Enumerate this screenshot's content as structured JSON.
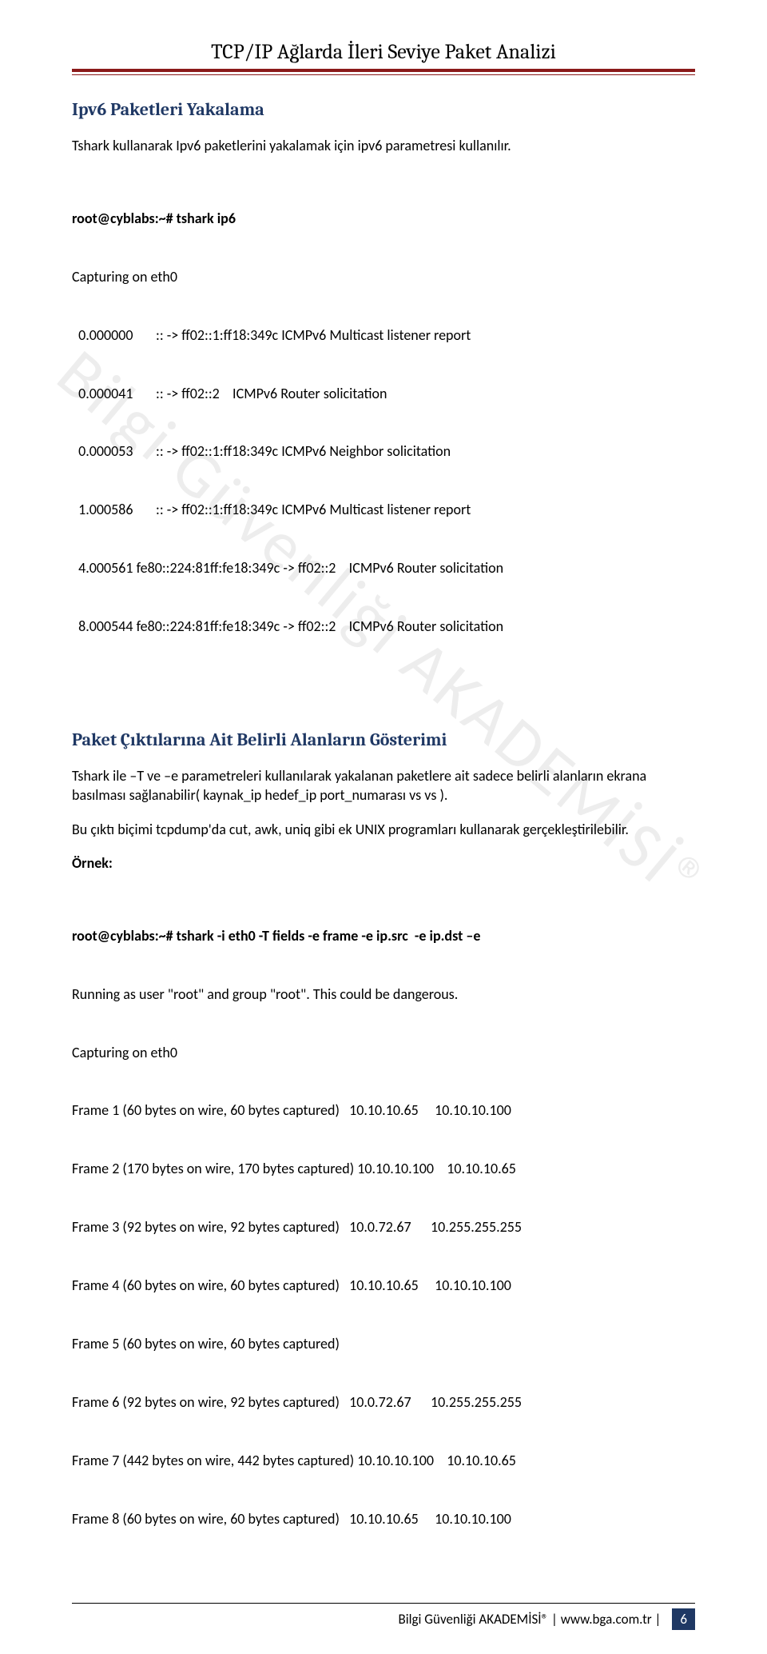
{
  "header": {
    "title": "TCP/IP Ağlarda İleri Seviye Paket Analizi"
  },
  "watermark": "Bilgi Güvenliği AKADEMİSİ®",
  "section1": {
    "heading": "Ipv6 Paketleri Yakalama",
    "intro": "Tshark kullanarak Ipv6 paketlerini yakalamak için ipv6 parametresi kullanılır.",
    "cmd_label": "root@cyblabs:~# tshark ip6",
    "capturing": "Capturing on eth0",
    "lines": [
      "  0.000000       :: -> ff02::1:ff18:349c ICMPv6 Multicast listener report",
      "  0.000041       :: -> ff02::2    ICMPv6 Router solicitation",
      "  0.000053       :: -> ff02::1:ff18:349c ICMPv6 Neighbor solicitation",
      "  1.000586       :: -> ff02::1:ff18:349c ICMPv6 Multicast listener report",
      "  4.000561 fe80::224:81ff:fe18:349c -> ff02::2    ICMPv6 Router solicitation",
      "  8.000544 fe80::224:81ff:fe18:349c -> ff02::2    ICMPv6 Router solicitation"
    ]
  },
  "section2": {
    "heading": "Paket Çıktılarına Ait Belirli Alanların Gösterimi",
    "p1": "Tshark ile –T ve –e parametreleri kullanılarak yakalanan paketlere ait sadece belirli alanların ekrana basılması sağlanabilir( kaynak_ip hedef_ip port_numarası vs vs ).",
    "p2": "Bu çıktı biçimi tcpdump'da cut, awk, uniq gibi  ek UNIX programları kullanarak gerçekleştirilebilir.",
    "example_label": "Örnek:",
    "cmd_label": "root@cyblabs:~# tshark -i eth0 -T fields -e frame -e ip.src  -e ip.dst –e",
    "output": [
      "Running as user \"root\" and group \"root\". This could be dangerous.",
      "Capturing on eth0",
      "Frame 1 (60 bytes on wire, 60 bytes captured)   10.10.10.65     10.10.10.100",
      "Frame 2 (170 bytes on wire, 170 bytes captured) 10.10.10.100    10.10.10.65",
      "Frame 3 (92 bytes on wire, 92 bytes captured)   10.0.72.67      10.255.255.255",
      "Frame 4 (60 bytes on wire, 60 bytes captured)   10.10.10.65     10.10.10.100",
      "Frame 5 (60 bytes on wire, 60 bytes captured)",
      "Frame 6 (92 bytes on wire, 92 bytes captured)   10.0.72.67      10.255.255.255",
      "Frame 7 (442 bytes on wire, 442 bytes captured) 10.10.10.100    10.10.10.65",
      "Frame 8 (60 bytes on wire, 60 bytes captured)   10.10.10.65     10.10.10.100"
    ]
  },
  "footer": {
    "text": "Bilgi Güvenliği AKADEMİSİ®   |   www.bga.com.tr   |",
    "page": "6"
  }
}
